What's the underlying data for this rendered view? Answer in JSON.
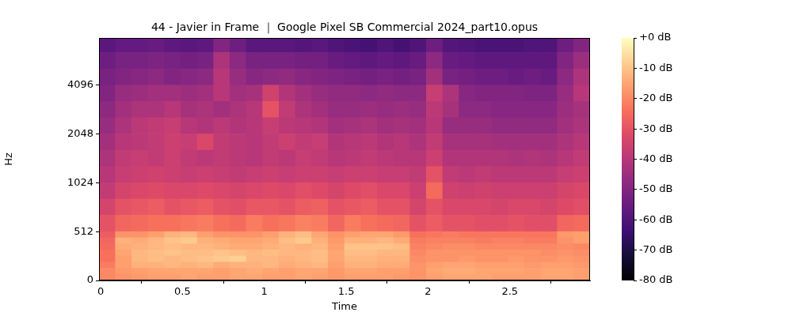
{
  "chart_data": {
    "type": "heatmap",
    "title": "44 - Javier in Frame ｜ Google Pixel SB Commercial 2024_part10.opus",
    "x_label": "Time",
    "y_label": "Hz",
    "xlim": [
      -0.01,
      2.99
    ],
    "xticks": [
      0,
      0.5,
      1,
      1.5,
      2,
      2.5
    ],
    "ylim": [
      0,
      8000
    ],
    "yticks": [
      0,
      512,
      1024,
      2048,
      4096
    ],
    "grid": false,
    "color": "magma",
    "x_bins": [
      -0.01,
      0.09,
      0.19,
      0.29,
      0.39,
      0.49,
      0.59,
      0.69,
      0.79,
      0.89,
      0.99,
      1.09,
      1.19,
      1.29,
      1.39,
      1.49,
      1.59,
      1.69,
      1.79,
      1.89,
      1.99,
      2.09,
      2.19,
      2.29,
      2.39,
      2.49,
      2.59,
      2.69,
      2.79,
      2.89,
      2.99
    ],
    "y_bins": [
      0,
      64,
      128,
      192,
      256,
      320,
      384,
      448,
      512,
      645,
      813,
      1024,
      1290,
      1625,
      2048,
      2580,
      3251,
      4096,
      5161,
      6502,
      8000
    ],
    "values": [
      [
        -20,
        -18,
        -17,
        -16,
        -16,
        -15,
        -16,
        -16,
        -15,
        -15,
        -16,
        -16,
        -15,
        -16,
        -17,
        -16,
        -16,
        -16,
        -17,
        -18,
        -16,
        -15,
        -15,
        -15,
        -16,
        -16,
        -16,
        -15,
        -15,
        -16
      ],
      [
        -20,
        -17,
        -16,
        -15,
        -15,
        -15,
        -15,
        -16,
        -15,
        -14,
        -15,
        -16,
        -15,
        -15,
        -17,
        -15,
        -15,
        -16,
        -16,
        -18,
        -15,
        -14,
        -14,
        -15,
        -15,
        -15,
        -16,
        -15,
        -15,
        -16
      ],
      [
        -22,
        -16,
        -13,
        -13,
        -12,
        -13,
        -12,
        -14,
        -13,
        -13,
        -12,
        -14,
        -13,
        -12,
        -16,
        -13,
        -13,
        -14,
        -14,
        -18,
        -16,
        -15,
        -15,
        -16,
        -16,
        -16,
        -17,
        -16,
        -16,
        -17
      ],
      [
        -24,
        -16,
        -12,
        -11,
        -12,
        -11,
        -10,
        -9,
        -8,
        -12,
        -12,
        -13,
        -12,
        -11,
        -15,
        -12,
        -12,
        -13,
        -13,
        -19,
        -18,
        -18,
        -17,
        -18,
        -18,
        -17,
        -18,
        -18,
        -17,
        -18
      ],
      [
        -24,
        -15,
        -12,
        -11,
        -10,
        -11,
        -11,
        -10,
        -11,
        -12,
        -11,
        -12,
        -12,
        -11,
        -15,
        -11,
        -11,
        -12,
        -12,
        -20,
        -18,
        -18,
        -18,
        -18,
        -18,
        -18,
        -18,
        -19,
        -18,
        -19
      ],
      [
        -25,
        -14,
        -13,
        -12,
        -11,
        -12,
        -12,
        -13,
        -14,
        -14,
        -13,
        -12,
        -13,
        -12,
        -16,
        -10,
        -10,
        -10,
        -11,
        -21,
        -20,
        -19,
        -19,
        -20,
        -20,
        -20,
        -20,
        -20,
        -19,
        -20
      ],
      [
        -26,
        -13,
        -14,
        -12,
        -10,
        -9,
        -13,
        -14,
        -15,
        -15,
        -14,
        -11,
        -9,
        -13,
        -17,
        -13,
        -13,
        -12,
        -14,
        -22,
        -21,
        -21,
        -21,
        -22,
        -21,
        -21,
        -22,
        -22,
        -18,
        -16
      ],
      [
        -28,
        -18,
        -18,
        -16,
        -13,
        -12,
        -16,
        -18,
        -18,
        -18,
        -16,
        -13,
        -11,
        -15,
        -18,
        -16,
        -15,
        -15,
        -17,
        -24,
        -23,
        -22,
        -23,
        -23,
        -23,
        -23,
        -23,
        -23,
        -17,
        -16
      ],
      [
        -30,
        -26,
        -25,
        -24,
        -24,
        -23,
        -22,
        -24,
        -25,
        -22,
        -24,
        -23,
        -21,
        -22,
        -26,
        -22,
        -24,
        -25,
        -26,
        -30,
        -28,
        -30,
        -30,
        -31,
        -31,
        -30,
        -31,
        -31,
        -26,
        -25
      ],
      [
        -34,
        -30,
        -29,
        -28,
        -30,
        -29,
        -28,
        -30,
        -31,
        -29,
        -29,
        -30,
        -28,
        -27,
        -30,
        -29,
        -28,
        -30,
        -30,
        -34,
        -30,
        -33,
        -33,
        -33,
        -34,
        -33,
        -33,
        -34,
        -32,
        -31
      ],
      [
        -38,
        -34,
        -33,
        -32,
        -33,
        -33,
        -32,
        -33,
        -34,
        -33,
        -32,
        -33,
        -31,
        -32,
        -34,
        -32,
        -31,
        -33,
        -33,
        -36,
        -25,
        -35,
        -36,
        -35,
        -36,
        -36,
        -36,
        -36,
        -34,
        -33
      ],
      [
        -40,
        -37,
        -36,
        -35,
        -36,
        -37,
        -36,
        -37,
        -38,
        -37,
        -36,
        -37,
        -36,
        -36,
        -37,
        -36,
        -36,
        -37,
        -37,
        -38,
        -30,
        -38,
        -39,
        -38,
        -39,
        -39,
        -39,
        -39,
        -37,
        -36
      ],
      [
        -42,
        -38,
        -37,
        -38,
        -36,
        -38,
        -39,
        -38,
        -39,
        -40,
        -38,
        -39,
        -37,
        -38,
        -40,
        -39,
        -38,
        -39,
        -40,
        -40,
        -36,
        -41,
        -41,
        -41,
        -41,
        -42,
        -41,
        -42,
        -40,
        -38
      ],
      [
        -44,
        -40,
        -39,
        -38,
        -36,
        -37,
        -33,
        -38,
        -39,
        -40,
        -38,
        -36,
        -38,
        -37,
        -41,
        -40,
        -39,
        -41,
        -40,
        -42,
        -38,
        -43,
        -43,
        -43,
        -44,
        -44,
        -44,
        -44,
        -42,
        -40
      ],
      [
        -46,
        -42,
        -39,
        -38,
        -37,
        -40,
        -41,
        -39,
        -41,
        -40,
        -37,
        -39,
        -40,
        -41,
        -44,
        -43,
        -42,
        -44,
        -43,
        -44,
        -40,
        -46,
        -46,
        -46,
        -47,
        -47,
        -47,
        -47,
        -44,
        -42
      ],
      [
        -48,
        -44,
        -42,
        -42,
        -40,
        -43,
        -42,
        -44,
        -42,
        -40,
        -30,
        -38,
        -42,
        -44,
        -46,
        -46,
        -45,
        -46,
        -45,
        -46,
        -39,
        -43,
        -48,
        -48,
        -49,
        -49,
        -49,
        -49,
        -45,
        -43
      ],
      [
        -50,
        -46,
        -45,
        -44,
        -44,
        -45,
        -44,
        -40,
        -44,
        -43,
        -35,
        -41,
        -44,
        -46,
        -47,
        -47,
        -48,
        -47,
        -48,
        -48,
        -37,
        -42,
        -49,
        -50,
        -50,
        -50,
        -51,
        -51,
        -46,
        -40
      ],
      [
        -52,
        -50,
        -49,
        -48,
        -50,
        -49,
        -48,
        -40,
        -46,
        -49,
        -48,
        -47,
        -49,
        -50,
        -51,
        -52,
        -53,
        -52,
        -53,
        -52,
        -44,
        -52,
        -53,
        -54,
        -54,
        -55,
        -54,
        -55,
        -48,
        -42
      ],
      [
        -54,
        -52,
        -52,
        -51,
        -52,
        -53,
        -52,
        -42,
        -48,
        -52,
        -52,
        -52,
        -53,
        -53,
        -55,
        -56,
        -57,
        -56,
        -57,
        -55,
        -48,
        -55,
        -56,
        -57,
        -57,
        -57,
        -57,
        -57,
        -50,
        -45
      ],
      [
        -58,
        -56,
        -56,
        -55,
        -57,
        -58,
        -57,
        -50,
        -54,
        -58,
        -58,
        -58,
        -59,
        -58,
        -60,
        -61,
        -62,
        -60,
        -62,
        -60,
        -54,
        -59,
        -60,
        -61,
        -61,
        -61,
        -60,
        -60,
        -54,
        -50
      ]
    ],
    "colorbar": {
      "range": [
        -80,
        0
      ],
      "ticks": [
        {
          "value": 0,
          "label": "+0 dB"
        },
        {
          "value": -10,
          "label": "-10 dB"
        },
        {
          "value": -20,
          "label": "-20 dB"
        },
        {
          "value": -30,
          "label": "-30 dB"
        },
        {
          "value": -40,
          "label": "-40 dB"
        },
        {
          "value": -50,
          "label": "-50 dB"
        },
        {
          "value": -60,
          "label": "-60 dB"
        },
        {
          "value": -70,
          "label": "-70 dB"
        },
        {
          "value": -80,
          "label": "-80 dB"
        }
      ]
    }
  }
}
